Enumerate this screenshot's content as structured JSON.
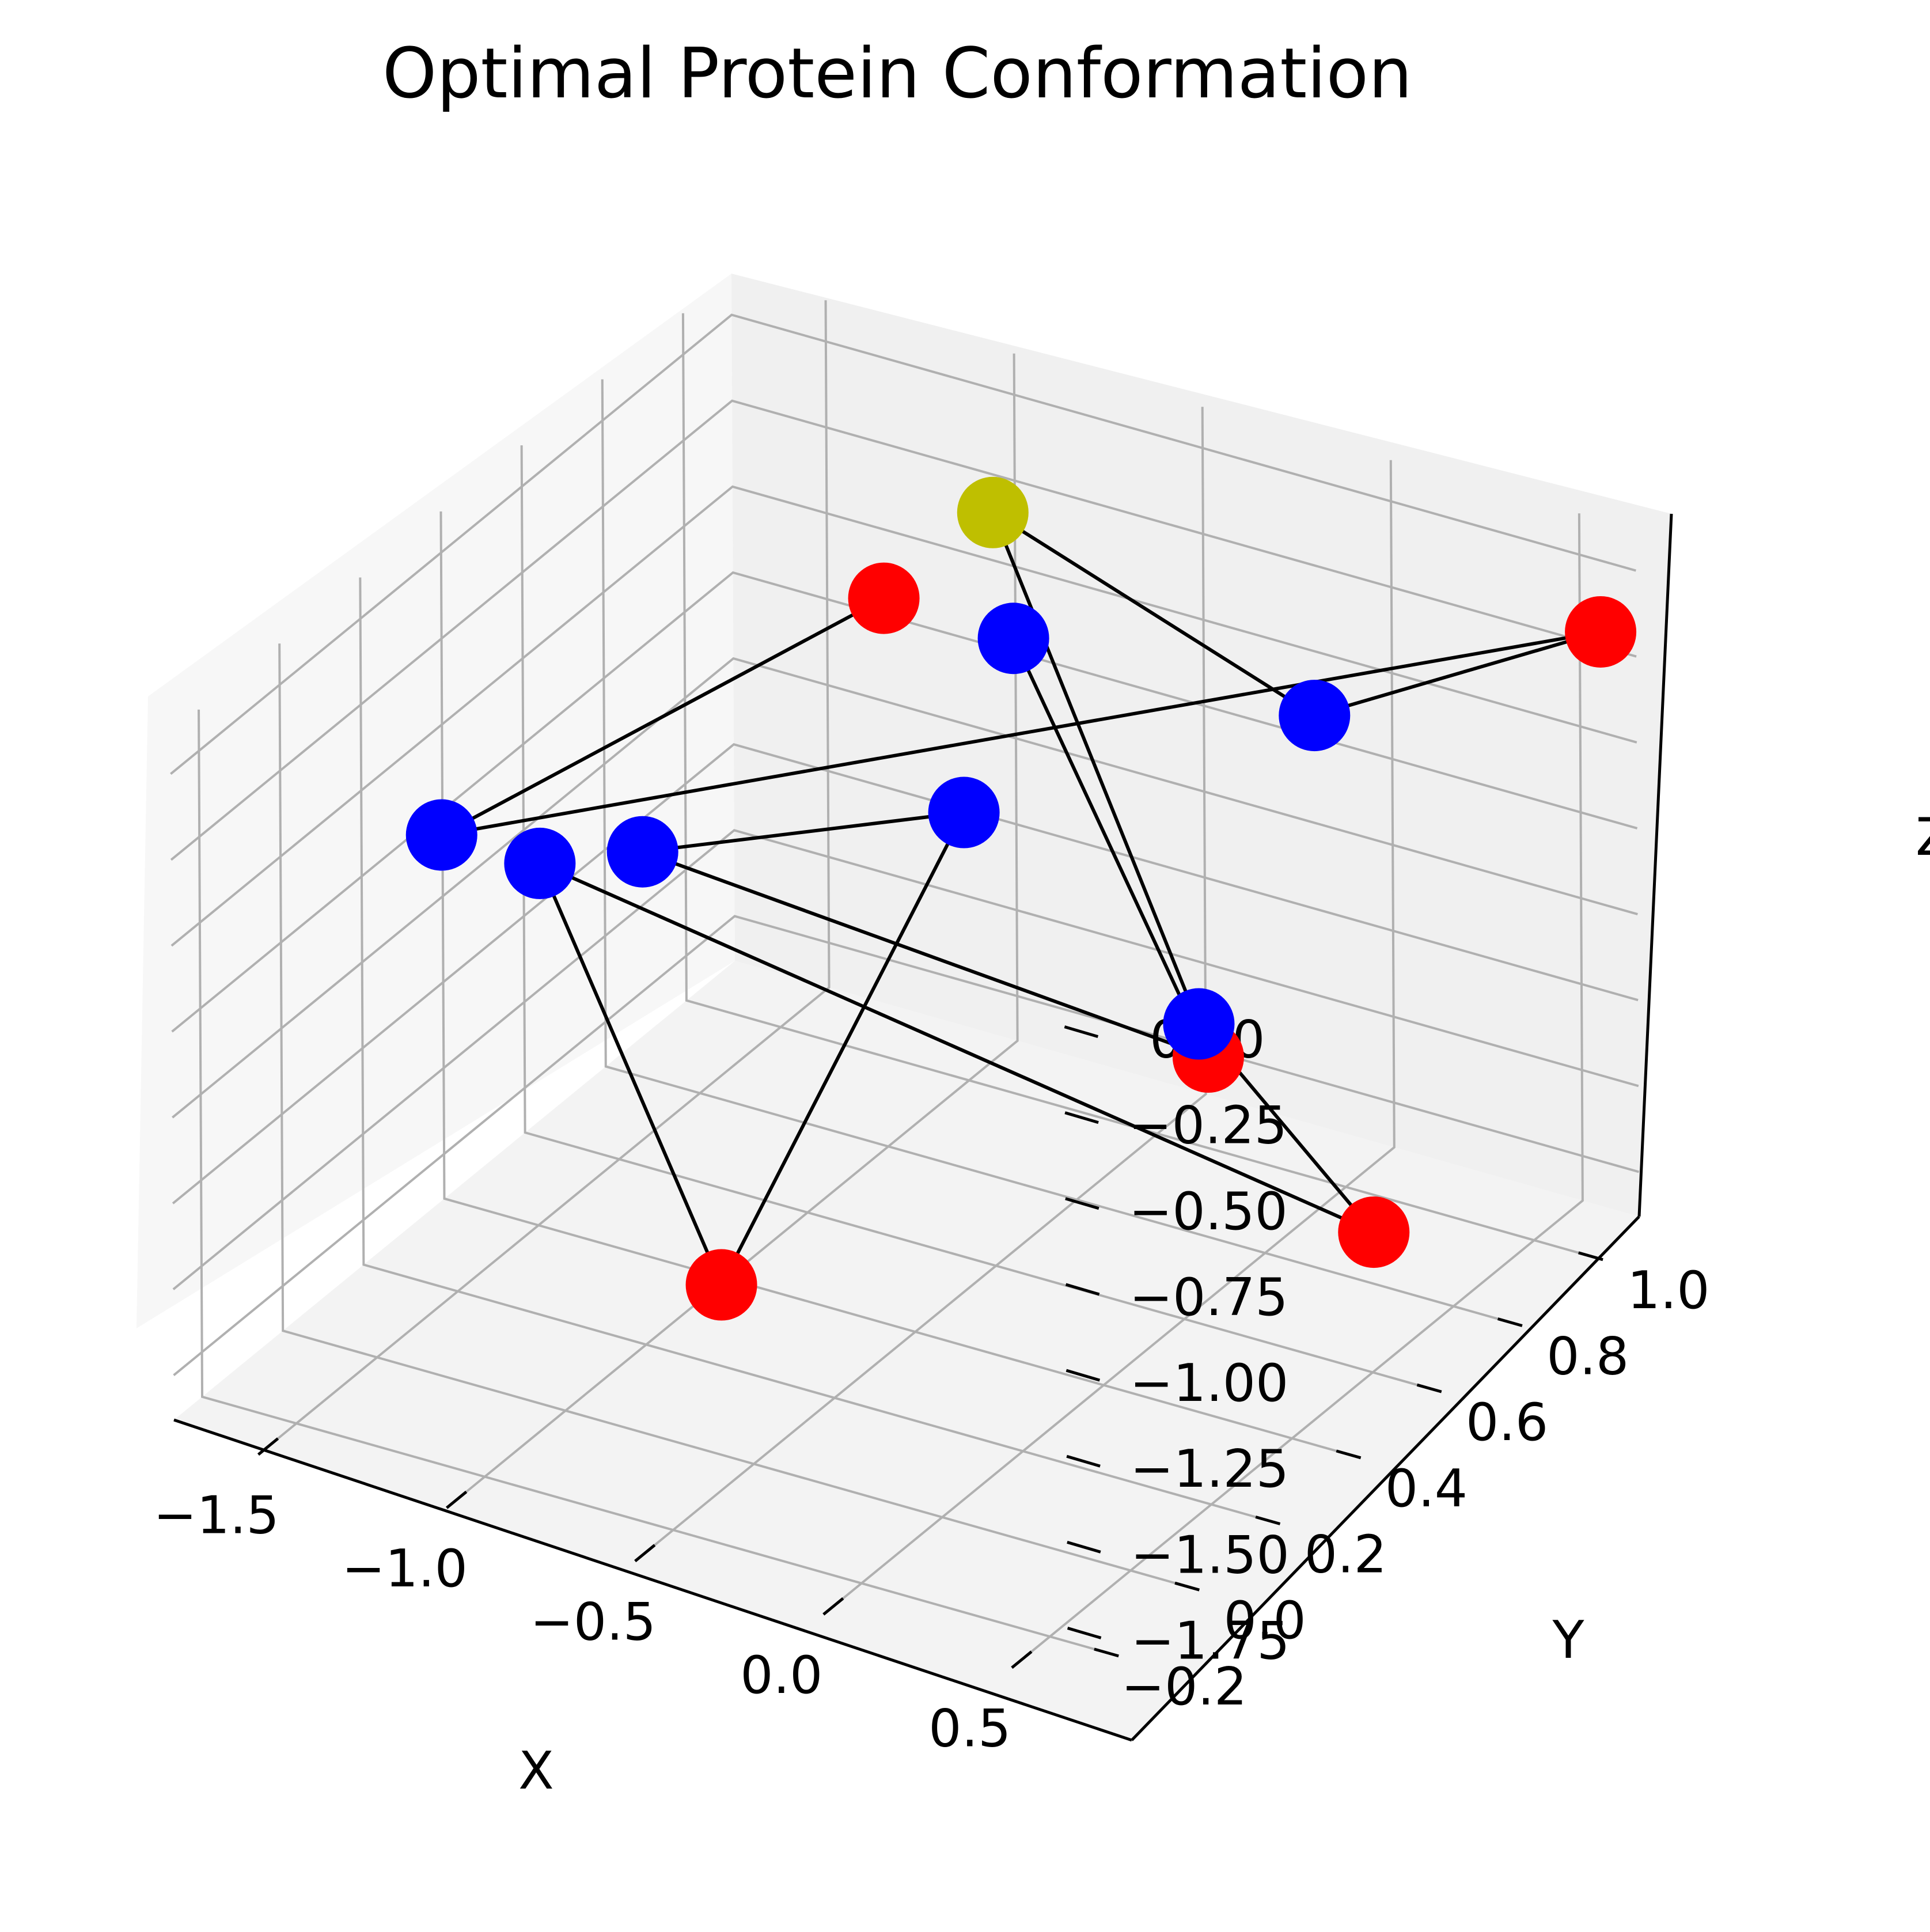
{
  "chart_data": {
    "type": "scatter",
    "projection": "3d",
    "title": "Optimal Protein Conformation",
    "xlabel": "X",
    "ylabel": "Y",
    "zlabel": "Z",
    "xlim": [
      -1.75,
      0.65
    ],
    "ylim": [
      -0.27,
      1.12
    ],
    "zlim": [
      -1.88,
      0.12
    ],
    "grid": true,
    "xticks": [
      -1.5,
      -1.0,
      -0.5,
      0.0,
      0.5
    ],
    "xtick_labels": [
      "−1.5",
      "−1.0",
      "−0.5",
      "0.0",
      "0.5"
    ],
    "yticks": [
      -0.2,
      0.0,
      0.2,
      0.4,
      0.6,
      0.8,
      1.0
    ],
    "ytick_labels": [
      "−0.2",
      "0.0",
      "0.2",
      "0.4",
      "0.6",
      "0.8",
      "1.0"
    ],
    "zticks": [
      0.0,
      -0.25,
      -0.5,
      -0.75,
      -1.0,
      -1.25,
      -1.5,
      -1.75
    ],
    "ztick_labels": [
      "0.00",
      "−0.25",
      "−0.50",
      "−0.75",
      "−1.00",
      "−1.25",
      "−1.50",
      "−1.75"
    ],
    "residue_colors": {
      "H": "#0000ff",
      "P": "#ff0000",
      "C": "#bfbf00"
    },
    "bond_color": "#000000",
    "residues": [
      {
        "type": "H",
        "x": -0.93,
        "y": 1.05,
        "z": -0.62
      },
      {
        "type": "P",
        "x": -0.31,
        "y": 0.95,
        "z": -1.55
      },
      {
        "type": "H",
        "x": -1.38,
        "y": 0.55,
        "z": -0.9
      },
      {
        "type": "H",
        "x": -0.45,
        "y": 0.48,
        "z": -0.43
      },
      {
        "type": "P",
        "x": -0.53,
        "y": -0.05,
        "z": -1.32
      },
      {
        "type": "H",
        "x": -1.33,
        "y": 0.25,
        "z": -0.63
      },
      {
        "type": "P",
        "x": 0.58,
        "y": 0.53,
        "z": -1.38
      },
      {
        "type": "H",
        "x": 0.29,
        "y": 0.37,
        "z": -0.71
      },
      {
        "type": "C",
        "x": -0.8,
        "y": 0.88,
        "z": -0.05
      },
      {
        "type": "H",
        "x": 0.44,
        "y": 0.52,
        "z": 0.09
      },
      {
        "type": "P",
        "x": 0.62,
        "y": 1.06,
        "z": -0.13
      },
      {
        "type": "H",
        "x": -1.16,
        "y": -0.15,
        "z": -0.11
      },
      {
        "type": "P",
        "x": -0.8,
        "y": 0.61,
        "z": -0.04
      }
    ],
    "bonds": [
      [
        0,
        1
      ],
      [
        1,
        2
      ],
      [
        2,
        3
      ],
      [
        3,
        4
      ],
      [
        4,
        5
      ],
      [
        5,
        6
      ],
      [
        6,
        7
      ],
      [
        7,
        8
      ],
      [
        8,
        9
      ],
      [
        9,
        10
      ],
      [
        10,
        11
      ],
      [
        11,
        12
      ]
    ]
  }
}
